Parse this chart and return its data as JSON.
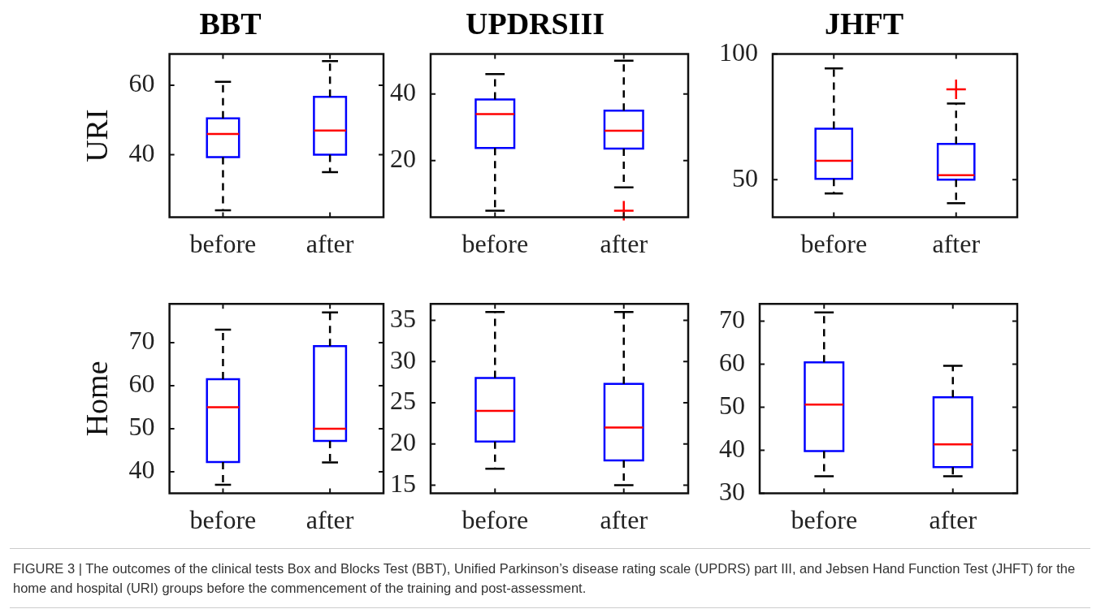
{
  "chart_data": [
    {
      "type": "box",
      "title": "BBT",
      "ylabel": "URI",
      "categories": [
        "before",
        "after"
      ],
      "color": "#0000ff",
      "ylim": [
        22,
        69
      ],
      "yticks": [
        40,
        60
      ],
      "boxes": [
        {
          "low": 24,
          "q1": 39.3,
          "median": 46,
          "q3": 50.5,
          "high": 61
        },
        {
          "low": 35,
          "q1": 40,
          "median": 47,
          "q3": 56.7,
          "high": 67
        }
      ],
      "annotations": [
        "FIGURE 3 | The outcomes of the clinical tests Box and Blocks Test (BBT), Unified Parkinson’s disease rating scale (UPDRS) part III, and Jebsen Hand Function Test (JHFT) for the home and hospital (URI) groups before the commencement of the training and post-assessment."
      ]
    },
    {
      "type": "box",
      "title": "UPDRSIII",
      "categories": [
        "before",
        "after"
      ],
      "color": "#0000ff",
      "ylim": [
        3,
        52
      ],
      "yticks": [
        20,
        40
      ],
      "boxes": [
        {
          "low": 5,
          "q1": 23.8,
          "median": 34,
          "q3": 38.4,
          "high": 46
        },
        {
          "low": 12,
          "q1": 23.6,
          "median": 29,
          "q3": 35,
          "high": 50,
          "outliers": [
            5
          ]
        }
      ]
    },
    {
      "type": "box",
      "title": "JHFT",
      "categories": [
        "before",
        "after"
      ],
      "color": "#0000ff",
      "ylim": [
        35,
        100
      ],
      "yticks": [
        50,
        100
      ],
      "boxes": [
        {
          "low": 44.5,
          "q1": 50.3,
          "median": 57.5,
          "q3": 70.3,
          "high": 94.3
        },
        {
          "low": 40.6,
          "q1": 50,
          "median": 51.8,
          "q3": 64.2,
          "high": 80.3,
          "outliers": [
            86
          ]
        }
      ]
    },
    {
      "type": "box",
      "ylabel": "Home",
      "categories": [
        "before",
        "after"
      ],
      "color": "#0000ff",
      "ylim": [
        35,
        79
      ],
      "yticks": [
        40,
        50,
        60,
        70
      ],
      "boxes": [
        {
          "low": 37,
          "q1": 42.3,
          "median": 55,
          "q3": 61.5,
          "high": 73
        },
        {
          "low": 42.2,
          "q1": 47.2,
          "median": 50,
          "q3": 69.2,
          "high": 77
        }
      ]
    },
    {
      "type": "box",
      "categories": [
        "before",
        "after"
      ],
      "color": "#0000ff",
      "ylim": [
        14,
        37
      ],
      "yticks": [
        15,
        20,
        25,
        30,
        35
      ],
      "boxes": [
        {
          "low": 17,
          "q1": 20.3,
          "median": 24,
          "q3": 28,
          "high": 36
        },
        {
          "low": 15,
          "q1": 18,
          "median": 22,
          "q3": 27.3,
          "high": 36
        }
      ]
    },
    {
      "type": "box",
      "categories": [
        "before",
        "after"
      ],
      "color": "#0000ff",
      "ylim": [
        30,
        74
      ],
      "yticks": [
        30,
        40,
        50,
        60,
        70
      ],
      "boxes": [
        {
          "low": 34,
          "q1": 39.8,
          "median": 50.6,
          "q3": 60.4,
          "high": 72
        },
        {
          "low": 34,
          "q1": 36.1,
          "median": 41.4,
          "q3": 52.3,
          "high": 59.6
        }
      ]
    }
  ]
}
